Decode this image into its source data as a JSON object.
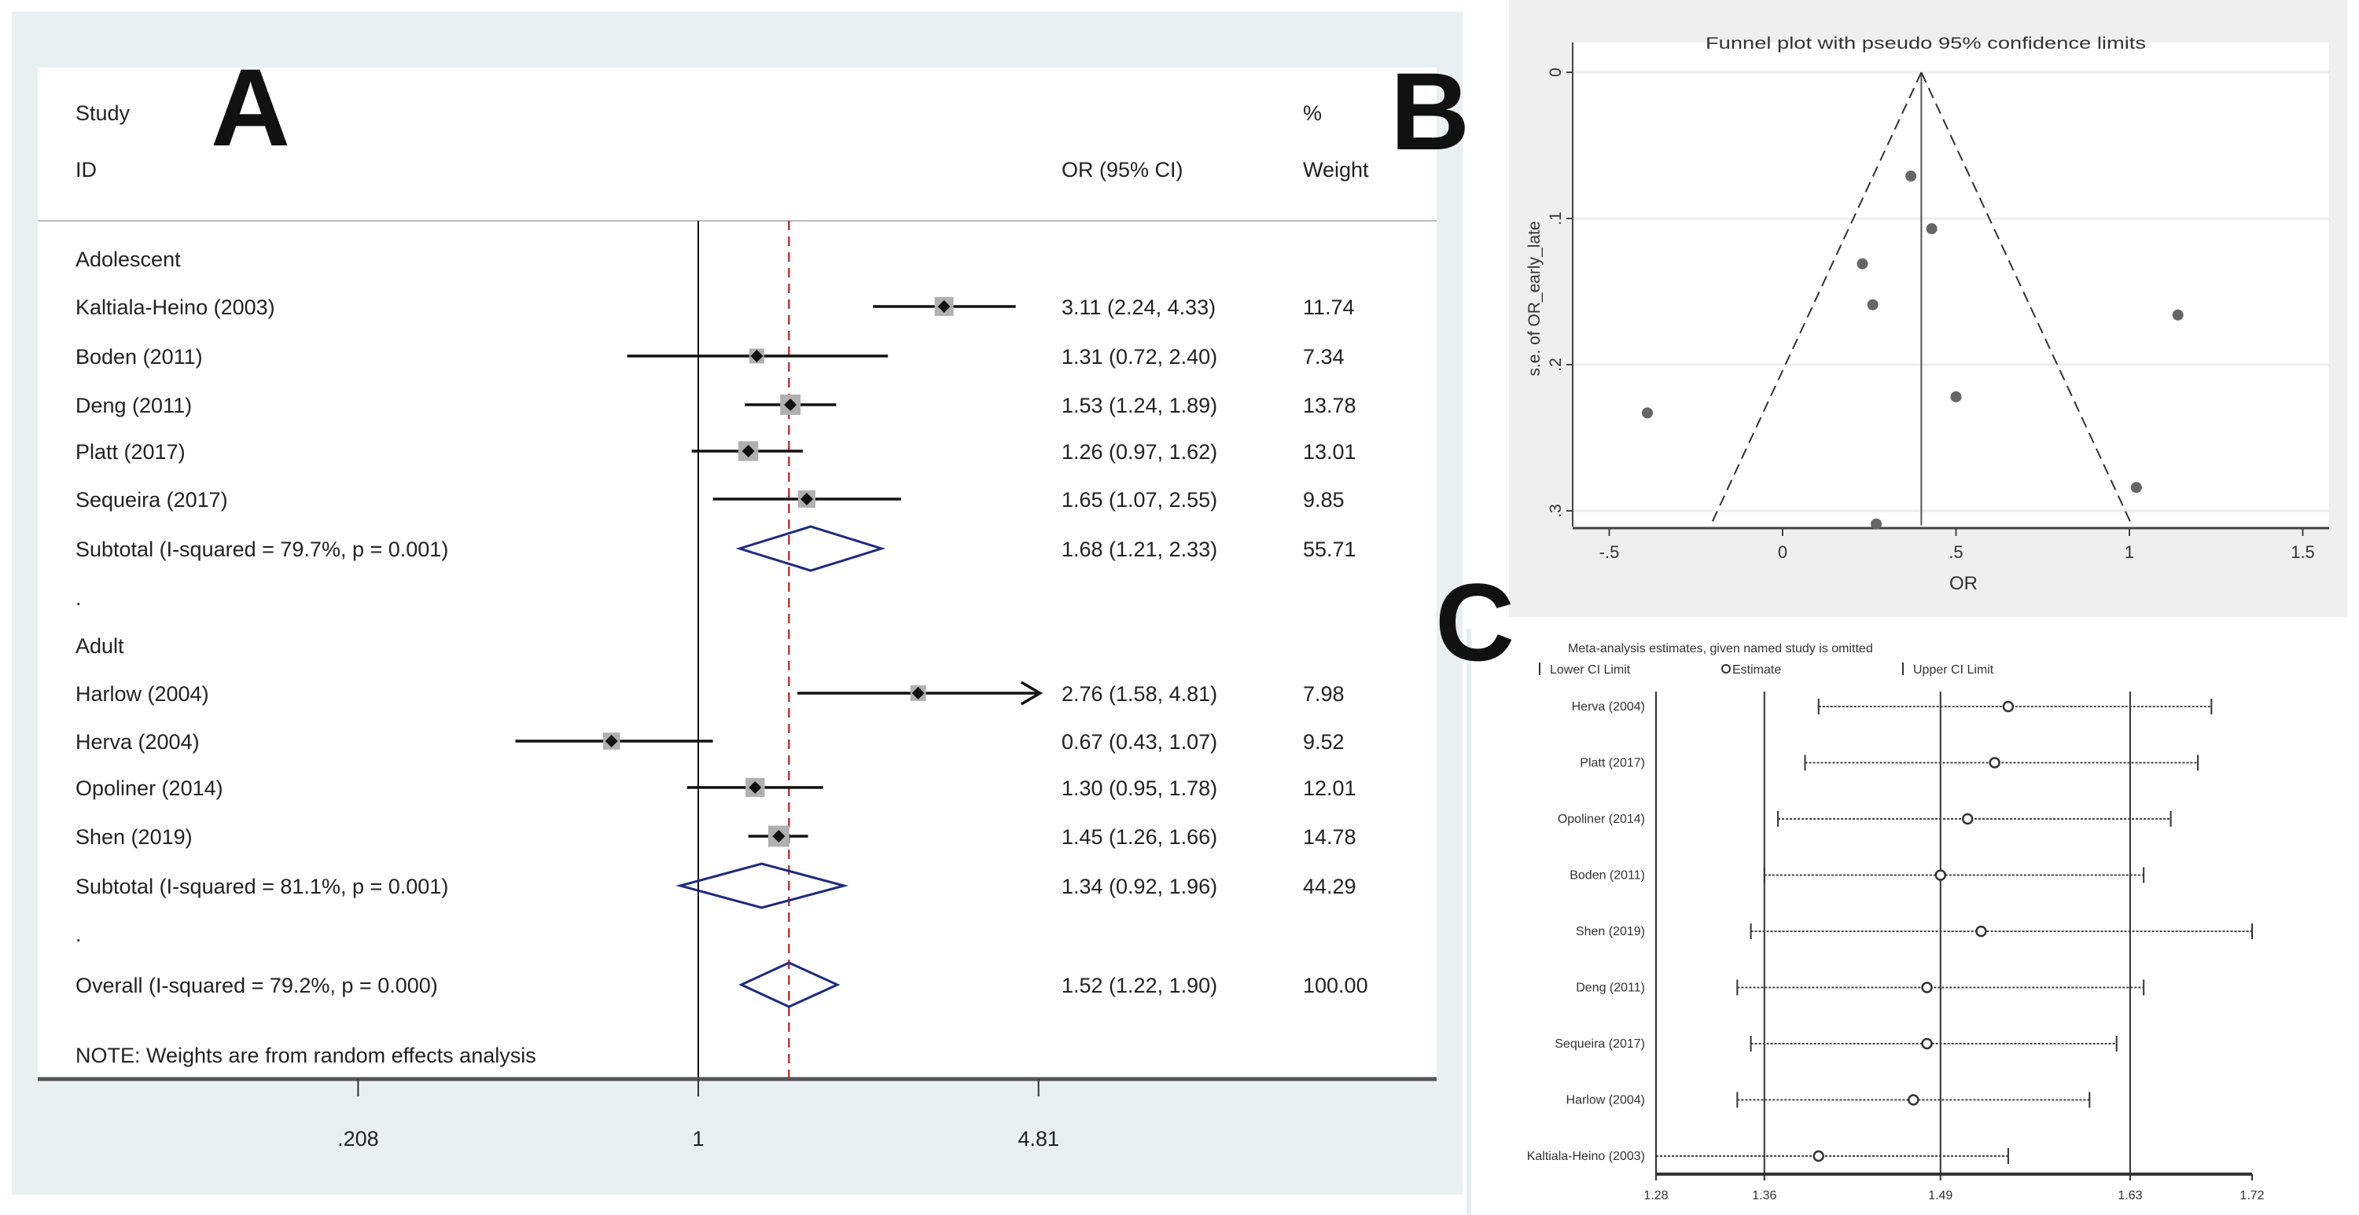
{
  "panel_labels": {
    "a": "A",
    "b": "B",
    "c": "C"
  },
  "chart_data": [
    {
      "type": "forest",
      "panel": "A",
      "headers": {
        "study_line1": "Study",
        "study_line2": "ID",
        "or": "OR (95% CI)",
        "weight_line1": "%",
        "weight_line2": "Weight"
      },
      "x_scale": "log",
      "xticks": [
        0.208,
        1,
        4.81
      ],
      "xtick_labels": [
        ".208",
        "1",
        "4.81"
      ],
      "null_line": 1,
      "overall_line": 1.52,
      "rows": [
        {
          "type": "group",
          "label": "Adolescent"
        },
        {
          "type": "study",
          "label": "Kaltiala-Heino (2003)",
          "or": 3.11,
          "lo": 2.24,
          "hi": 4.33,
          "text": "3.11 (2.24, 4.33)",
          "weight": 11.74,
          "weight_text": "11.74"
        },
        {
          "type": "study",
          "label": "Boden (2011)",
          "or": 1.31,
          "lo": 0.72,
          "hi": 2.4,
          "text": "1.31 (0.72, 2.40)",
          "weight": 7.34,
          "weight_text": "7.34"
        },
        {
          "type": "study",
          "label": "Deng (2011)",
          "or": 1.53,
          "lo": 1.24,
          "hi": 1.89,
          "text": "1.53 (1.24, 1.89)",
          "weight": 13.78,
          "weight_text": "13.78"
        },
        {
          "type": "study",
          "label": "Platt (2017)",
          "or": 1.26,
          "lo": 0.97,
          "hi": 1.62,
          "text": "1.26 (0.97, 1.62)",
          "weight": 13.01,
          "weight_text": "13.01"
        },
        {
          "type": "study",
          "label": "Sequeira (2017)",
          "or": 1.65,
          "lo": 1.07,
          "hi": 2.55,
          "text": "1.65 (1.07, 2.55)",
          "weight": 9.85,
          "weight_text": "9.85"
        },
        {
          "type": "subtotal",
          "label": "Subtotal  (I-squared = 79.7%, p = 0.001)",
          "or": 1.68,
          "lo": 1.21,
          "hi": 2.33,
          "text": "1.68 (1.21, 2.33)",
          "weight_text": "55.71"
        },
        {
          "type": "spacer",
          "label": "."
        },
        {
          "type": "group",
          "label": "Adult"
        },
        {
          "type": "study",
          "label": "Harlow (2004)",
          "or": 2.76,
          "lo": 1.58,
          "hi": 4.81,
          "text": "2.76 (1.58, 4.81)",
          "weight": 7.98,
          "weight_text": "7.98"
        },
        {
          "type": "study",
          "label": "Herva (2004)",
          "or": 0.67,
          "lo": 0.43,
          "hi": 1.07,
          "text": "0.67 (0.43, 1.07)",
          "weight": 9.52,
          "weight_text": "9.52"
        },
        {
          "type": "study",
          "label": "Opoliner (2014)",
          "or": 1.3,
          "lo": 0.95,
          "hi": 1.78,
          "text": "1.30 (0.95, 1.78)",
          "weight": 12.01,
          "weight_text": "12.01"
        },
        {
          "type": "study",
          "label": "Shen (2019)",
          "or": 1.45,
          "lo": 1.26,
          "hi": 1.66,
          "text": "1.45 (1.26, 1.66)",
          "weight": 14.78,
          "weight_text": "14.78"
        },
        {
          "type": "subtotal",
          "label": "Subtotal  (I-squared = 81.1%, p = 0.001)",
          "or": 1.34,
          "lo": 0.92,
          "hi": 1.96,
          "text": "1.34 (0.92, 1.96)",
          "weight_text": "44.29"
        },
        {
          "type": "spacer",
          "label": "."
        },
        {
          "type": "subtotal",
          "label": "Overall  (I-squared = 79.2%, p = 0.000)",
          "or": 1.52,
          "lo": 1.22,
          "hi": 1.9,
          "text": "1.52 (1.22, 1.90)",
          "weight_text": "100.00"
        }
      ],
      "note": "NOTE: Weights are from random effects analysis",
      "colors": {
        "diamond": "#1c2a80",
        "overall_line": "#b03a3a",
        "box": "#b0b0b0",
        "background": "#e8f0f1"
      }
    },
    {
      "type": "scatter",
      "panel": "B",
      "title": "Funnel plot with pseudo 95% confidence limits",
      "xlabel": "OR",
      "ylabel": "s.e. of OR_early_late",
      "xlim": [
        -0.5,
        1.5
      ],
      "ylim": [
        0,
        0.3
      ],
      "y_reversed": true,
      "xticks": [
        -0.5,
        0,
        0.5,
        1,
        1.5
      ],
      "xtick_labels": [
        "-.5",
        "0",
        ".5",
        "1",
        "1.5"
      ],
      "yticks": [
        0,
        0.1,
        0.2,
        0.3
      ],
      "ytick_labels": [
        "0",
        ".1",
        ".2",
        ".3"
      ],
      "grid": true,
      "pooled": 0.4,
      "funnel_se_max": 0.31,
      "points": [
        {
          "x": 0.37,
          "y": 0.071
        },
        {
          "x": 0.43,
          "y": 0.107
        },
        {
          "x": 0.23,
          "y": 0.131
        },
        {
          "x": 0.26,
          "y": 0.159
        },
        {
          "x": 1.14,
          "y": 0.166
        },
        {
          "x": -0.39,
          "y": 0.233
        },
        {
          "x": 0.5,
          "y": 0.222
        },
        {
          "x": 1.02,
          "y": 0.284
        },
        {
          "x": 0.27,
          "y": 0.309
        }
      ],
      "colors": {
        "point": "#666666",
        "background": "#efefef"
      }
    },
    {
      "type": "interval",
      "panel": "C",
      "title": "Meta-analysis estimates, given named study is omitted",
      "legend": [
        "Lower CI Limit",
        "Estimate",
        "Upper CI Limit"
      ],
      "xlim": [
        1.28,
        1.72
      ],
      "xticks": [
        1.28,
        1.36,
        1.49,
        1.63,
        1.72
      ],
      "xtick_labels": [
        "1.28",
        "1.36",
        "1.49",
        "1.63",
        "1.72"
      ],
      "reference_lines": [
        1.36,
        1.49,
        1.63
      ],
      "studies": [
        {
          "label": "Herva (2004)",
          "lo": 1.4,
          "est": 1.54,
          "hi": 1.69
        },
        {
          "label": "Platt (2017)",
          "lo": 1.39,
          "est": 1.53,
          "hi": 1.68
        },
        {
          "label": "Opoliner (2014)",
          "lo": 1.37,
          "est": 1.51,
          "hi": 1.66
        },
        {
          "label": "Boden (2011)",
          "lo": 1.36,
          "est": 1.49,
          "hi": 1.64
        },
        {
          "label": "Shen (2019)",
          "lo": 1.35,
          "est": 1.52,
          "hi": 1.72
        },
        {
          "label": "Deng (2011)",
          "lo": 1.34,
          "est": 1.48,
          "hi": 1.64
        },
        {
          "label": "Sequeira (2017)",
          "lo": 1.35,
          "est": 1.48,
          "hi": 1.62
        },
        {
          "label": "Harlow (2004)",
          "lo": 1.34,
          "est": 1.47,
          "hi": 1.6
        },
        {
          "label": "Kaltiala-Heino (2003)",
          "lo": 1.28,
          "est": 1.4,
          "hi": 1.54
        }
      ]
    }
  ]
}
